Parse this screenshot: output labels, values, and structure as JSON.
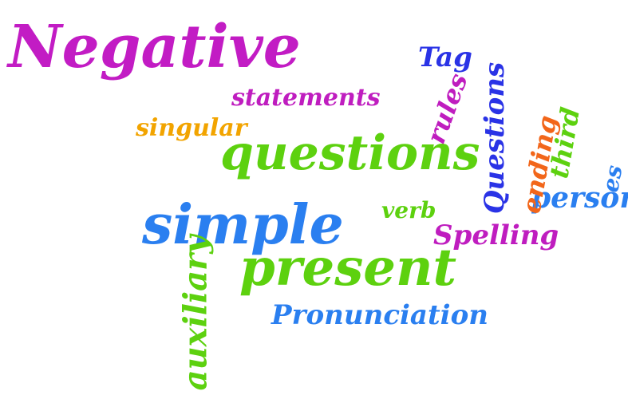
{
  "word_cloud": {
    "background": "#ffffff",
    "colors": {
      "magenta": "#c21cc4",
      "green": "#5dd10f",
      "blue": "#2a7ff0",
      "dark_blue": "#2a33e6",
      "orange": "#f2661a",
      "yellow": "#f2a400"
    },
    "words": {
      "negative": "Negative",
      "statements": "statements",
      "singular": "singular",
      "questions": "questions",
      "simple": "simple",
      "present": "present",
      "pronunciation": "Pronunciation",
      "auxiliary": "auxiliary",
      "verb": "verb",
      "spelling": "Spelling",
      "person": "person",
      "tag": "Tag",
      "rules": "rules",
      "questions_capital": "Questions",
      "ending": "ending",
      "third": "third",
      "es": "es"
    }
  }
}
